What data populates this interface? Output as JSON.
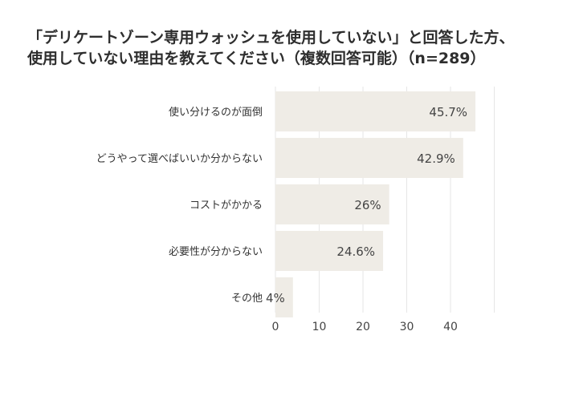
{
  "title_lines": [
    "「デリケートゾーン専用ウォッシュを使用していない」と回答した方、",
    "使用していない理由を教えてください（複数回答可能）（n=289）"
  ],
  "chart_data": {
    "type": "bar",
    "orientation": "horizontal",
    "categories": [
      "使い分けるのが面倒",
      "どうやって選べばいいか分からない",
      "コストがかかる",
      "必要性が分からない",
      "その他"
    ],
    "values": [
      45.7,
      42.9,
      26,
      24.6,
      4
    ],
    "value_labels": [
      "45.7%",
      "42.9%",
      "26%",
      "24.6%",
      "4%"
    ],
    "xticks": [
      0,
      10,
      20,
      30,
      40
    ],
    "xlim": [
      0,
      50
    ],
    "grid": "vertical",
    "bar_color": "#efece6",
    "grid_color": "#e6e6e6"
  }
}
